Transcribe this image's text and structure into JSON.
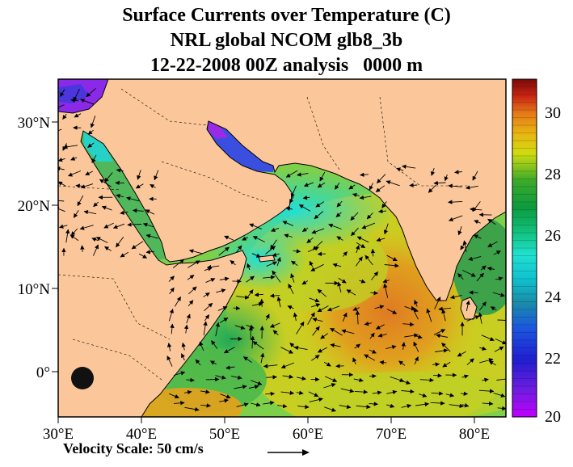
{
  "title": {
    "line1": "Surface Currents over Temperature (C)",
    "line2": "NRL global NCOM glb8_3b",
    "line3": "12-22-2008 00Z analysis   0000 m"
  },
  "axes": {
    "x_ticks": [
      "30°E",
      "40°E",
      "50°E",
      "60°E",
      "70°E",
      "80°E"
    ],
    "y_ticks": [
      "30°N",
      "20°N",
      "10°N",
      "0°"
    ]
  },
  "colorbar": {
    "labels": [
      "30",
      "28",
      "26",
      "24",
      "22",
      "20"
    ],
    "min": 20,
    "max": 31
  },
  "velocity_scale": {
    "label": "Velocity Scale:  50 cm/s"
  },
  "colors": {
    "land": "#fbc79a",
    "warm": "#e0901c",
    "cool": "#21cfd0"
  },
  "chart_data": {
    "type": "heatmap",
    "x_range": [
      30,
      85
    ],
    "y_range": [
      -5,
      35
    ],
    "x_unit": "°E",
    "y_unit": "°N",
    "value_range": [
      20,
      31
    ]
  }
}
